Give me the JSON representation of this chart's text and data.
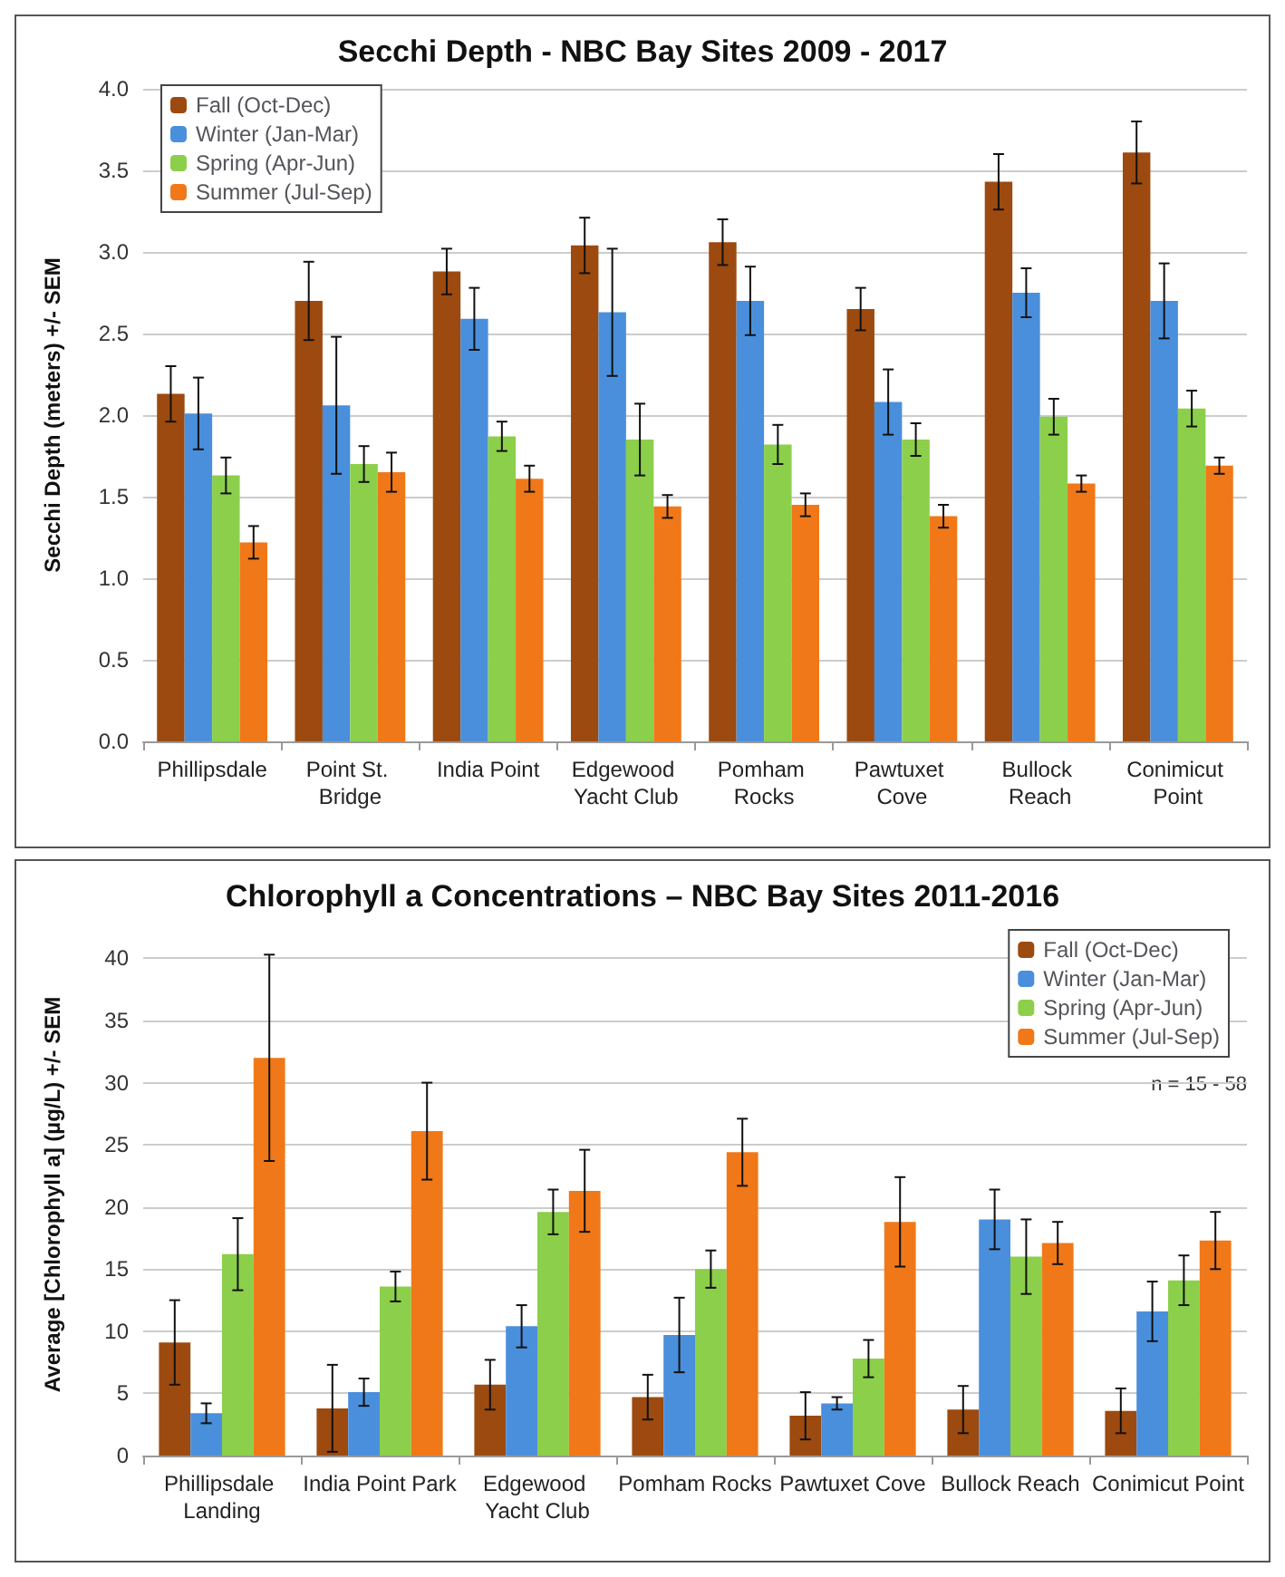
{
  "chart_data": [
    {
      "type": "bar",
      "title": "Secchi Depth - NBC Bay Sites 2009 - 2017",
      "ylabel": "Secchi Depth (meters) +/- SEM",
      "categories": [
        "Phillipsdale",
        "Point St. Bridge",
        "India Point",
        "Edgewood Yacht Club",
        "Pomham Rocks",
        "Pawtuxet Cove",
        "Bullock Reach",
        "Conimicut Point"
      ],
      "ylim": [
        0,
        4
      ],
      "yticks": [
        {
          "value": 0,
          "label": "0.0"
        },
        {
          "value": 0.5,
          "label": "0.5"
        },
        {
          "value": 1,
          "label": "1.0"
        },
        {
          "value": 1.5,
          "label": "1.5"
        },
        {
          "value": 2,
          "label": "2.0"
        },
        {
          "value": 2.5,
          "label": "2.5"
        },
        {
          "value": 3,
          "label": "3.0"
        },
        {
          "value": 3.5,
          "label": "3.5"
        },
        {
          "value": 4,
          "label": "4.0"
        }
      ],
      "grid": "y",
      "legend": "top left",
      "series": [
        {
          "name": "Fall (Oct-Dec)",
          "color": "#9c4a0f",
          "values": [
            2.13,
            2.7,
            2.88,
            3.04,
            3.06,
            2.65,
            3.43,
            3.61
          ],
          "errors": [
            0.17,
            0.24,
            0.14,
            0.17,
            0.14,
            0.13,
            0.17,
            0.19
          ]
        },
        {
          "name": "Winter (Jan-Mar)",
          "color": "#4a8fdc",
          "values": [
            2.01,
            2.06,
            2.59,
            2.63,
            2.7,
            2.08,
            2.75,
            2.7
          ],
          "errors": [
            0.22,
            0.42,
            0.19,
            0.39,
            0.21,
            0.2,
            0.15,
            0.23
          ]
        },
        {
          "name": "Spring (Apr-Jun)",
          "color": "#8ccf4a",
          "values": [
            1.63,
            1.7,
            1.87,
            1.85,
            1.82,
            1.85,
            1.99,
            2.04
          ],
          "errors": [
            0.11,
            0.11,
            0.09,
            0.22,
            0.12,
            0.1,
            0.11,
            0.11
          ]
        },
        {
          "name": "Summer (Jul-Sep)",
          "color": "#f07818",
          "values": [
            1.22,
            1.65,
            1.61,
            1.44,
            1.45,
            1.38,
            1.58,
            1.69
          ],
          "errors": [
            0.1,
            0.12,
            0.08,
            0.07,
            0.07,
            0.07,
            0.05,
            0.05
          ]
        }
      ]
    },
    {
      "type": "bar",
      "title": "Chlorophyll a Concentrations – NBC Bay Sites 2011-2016",
      "ylabel": "Average [Chlorophyll a] (µg/L) +/- SEM",
      "annotations": [
        "n = 15 - 58"
      ],
      "categories": [
        "Phillipsdale Landing",
        "India Point Park",
        "Edgewood Yacht Club",
        "Pomham Rocks",
        "Pawtuxet Cove",
        "Bullock Reach",
        "Conimicut Point"
      ],
      "ylim": [
        0,
        42
      ],
      "yticks": [
        0,
        5,
        10,
        15,
        20,
        25,
        30,
        35,
        40
      ],
      "grid": "y",
      "legend": "top right",
      "series": [
        {
          "name": "Fall (Oct-Dec)",
          "color": "#9c4a0f",
          "values": [
            9.1,
            3.8,
            5.7,
            4.7,
            3.2,
            3.7,
            3.6
          ],
          "errors": [
            3.4,
            3.5,
            2.0,
            1.8,
            1.9,
            1.9,
            1.8
          ]
        },
        {
          "name": "Winter (Jan-Mar)",
          "color": "#4a8fdc",
          "values": [
            3.4,
            5.1,
            10.4,
            9.7,
            4.2,
            19.0,
            11.6
          ],
          "errors": [
            0.8,
            1.1,
            1.7,
            3.0,
            0.5,
            2.4,
            2.4
          ]
        },
        {
          "name": "Spring (Apr-Jun)",
          "color": "#8ccf4a",
          "values": [
            16.2,
            13.6,
            19.6,
            15.0,
            7.8,
            16.0,
            14.1
          ],
          "errors": [
            2.9,
            1.2,
            1.8,
            1.5,
            1.5,
            3.0,
            2.0
          ]
        },
        {
          "name": "Summer (Jul-Sep)",
          "color": "#f07818",
          "values": [
            32.0,
            26.1,
            21.3,
            24.4,
            18.8,
            17.1,
            17.3
          ],
          "errors": [
            8.3,
            3.9,
            3.3,
            2.7,
            3.6,
            1.7,
            2.3
          ]
        }
      ]
    }
  ]
}
